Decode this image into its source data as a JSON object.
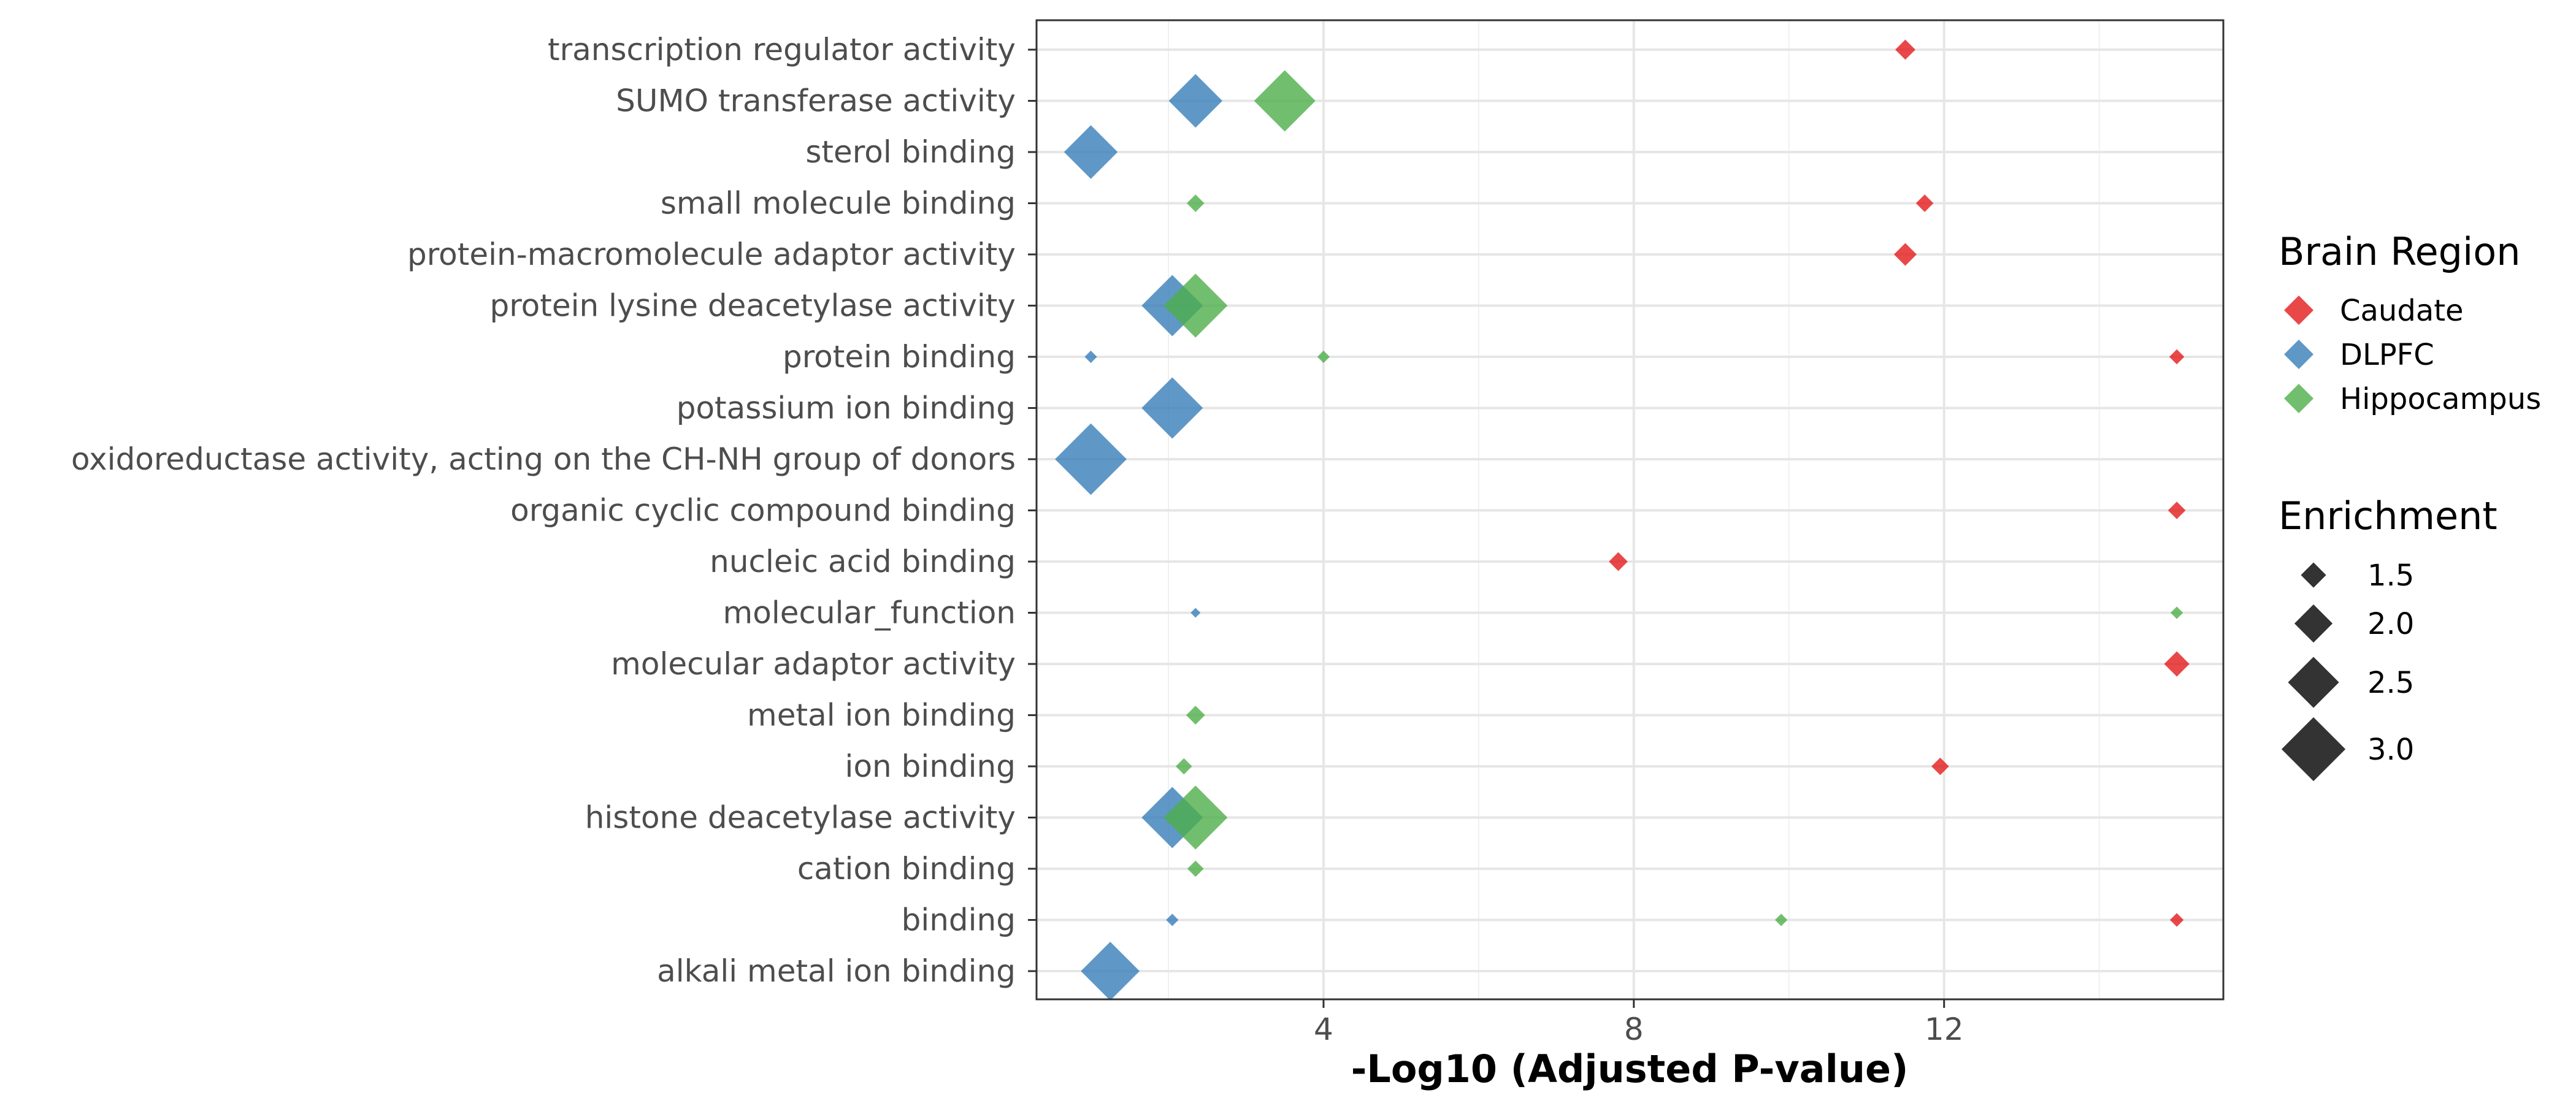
{
  "chart_data": {
    "type": "scatter",
    "xlabel": "-Log10 (Adjusted P-value)",
    "ylabel": "",
    "xlim": [
      0.3,
      15.6
    ],
    "xticks": [
      4,
      8,
      12
    ],
    "xgrid_minor": [
      2,
      6,
      10,
      14
    ],
    "grid": true,
    "categories": [
      "transcription regulator activity",
      "SUMO transferase activity",
      "sterol binding",
      "small molecule binding",
      "protein-macromolecule adaptor activity",
      "protein lysine deacetylase activity",
      "protein binding",
      "potassium ion binding",
      "oxidoreductase activity, acting on the CH-NH group of donors",
      "organic cyclic compound binding",
      "nucleic acid binding",
      "molecular_function",
      "molecular adaptor activity",
      "metal ion binding",
      "ion binding",
      "histone deacetylase activity",
      "cation binding",
      "binding",
      "alkali metal ion binding"
    ],
    "legend_placement": "right",
    "color_legend": {
      "title": "Brain Region",
      "entries": [
        {
          "name": "Caudate",
          "color": "#e41a1c"
        },
        {
          "name": "DLPFC",
          "color": "#377eb8"
        },
        {
          "name": "Hippocampus",
          "color": "#4daf4a"
        }
      ]
    },
    "size_legend": {
      "title": "Enrichment",
      "entries": [
        {
          "label": "1.5",
          "value": 1.5
        },
        {
          "label": "2.0",
          "value": 2.0
        },
        {
          "label": "2.5",
          "value": 2.5
        },
        {
          "label": "3.0",
          "value": 3.0
        }
      ]
    },
    "series": [
      {
        "name": "Caudate",
        "points": [
          {
            "term": "transcription regulator activity",
            "x": 11.5,
            "enrichment": 1.3
          },
          {
            "term": "small molecule binding",
            "x": 11.75,
            "enrichment": 1.2
          },
          {
            "term": "protein-macromolecule adaptor activity",
            "x": 11.5,
            "enrichment": 1.4
          },
          {
            "term": "protein binding",
            "x": 15.0,
            "enrichment": 1.1
          },
          {
            "term": "organic cyclic compound binding",
            "x": 15.0,
            "enrichment": 1.2
          },
          {
            "term": "nucleic acid binding",
            "x": 7.8,
            "enrichment": 1.25
          },
          {
            "term": "molecular adaptor activity",
            "x": 15.0,
            "enrichment": 1.5
          },
          {
            "term": "ion binding",
            "x": 11.95,
            "enrichment": 1.2
          },
          {
            "term": "binding",
            "x": 15.0,
            "enrichment": 1.05
          }
        ]
      },
      {
        "name": "DLPFC",
        "points": [
          {
            "term": "SUMO transferase activity",
            "x": 2.35,
            "enrichment": 2.6
          },
          {
            "term": "sterol binding",
            "x": 1.0,
            "enrichment": 2.6
          },
          {
            "term": "protein lysine deacetylase activity",
            "x": 2.05,
            "enrichment": 2.9
          },
          {
            "term": "protein binding",
            "x": 1.0,
            "enrichment": 1.0
          },
          {
            "term": "potassium ion binding",
            "x": 2.05,
            "enrichment": 2.9
          },
          {
            "term": "oxidoreductase activity, acting on the CH-NH group of donors",
            "x": 1.0,
            "enrichment": 3.3
          },
          {
            "term": "molecular_function",
            "x": 2.35,
            "enrichment": 0.9
          },
          {
            "term": "histone deacetylase activity",
            "x": 2.05,
            "enrichment": 2.9
          },
          {
            "term": "binding",
            "x": 2.05,
            "enrichment": 1.0
          },
          {
            "term": "alkali metal ion binding",
            "x": 1.25,
            "enrichment": 2.8
          }
        ]
      },
      {
        "name": "Hippocampus",
        "points": [
          {
            "term": "SUMO transferase activity",
            "x": 3.5,
            "enrichment": 2.9
          },
          {
            "term": "small molecule binding",
            "x": 2.35,
            "enrichment": 1.2
          },
          {
            "term": "protein lysine deacetylase activity",
            "x": 2.35,
            "enrichment": 3.0
          },
          {
            "term": "protein binding",
            "x": 4.0,
            "enrichment": 1.0
          },
          {
            "term": "molecular_function",
            "x": 15.0,
            "enrichment": 1.0
          },
          {
            "term": "metal ion binding",
            "x": 2.35,
            "enrichment": 1.25
          },
          {
            "term": "ion binding",
            "x": 2.2,
            "enrichment": 1.15
          },
          {
            "term": "histone deacetylase activity",
            "x": 2.35,
            "enrichment": 3.0
          },
          {
            "term": "cation binding",
            "x": 2.35,
            "enrichment": 1.15
          },
          {
            "term": "binding",
            "x": 9.9,
            "enrichment": 1.0
          }
        ]
      }
    ]
  }
}
